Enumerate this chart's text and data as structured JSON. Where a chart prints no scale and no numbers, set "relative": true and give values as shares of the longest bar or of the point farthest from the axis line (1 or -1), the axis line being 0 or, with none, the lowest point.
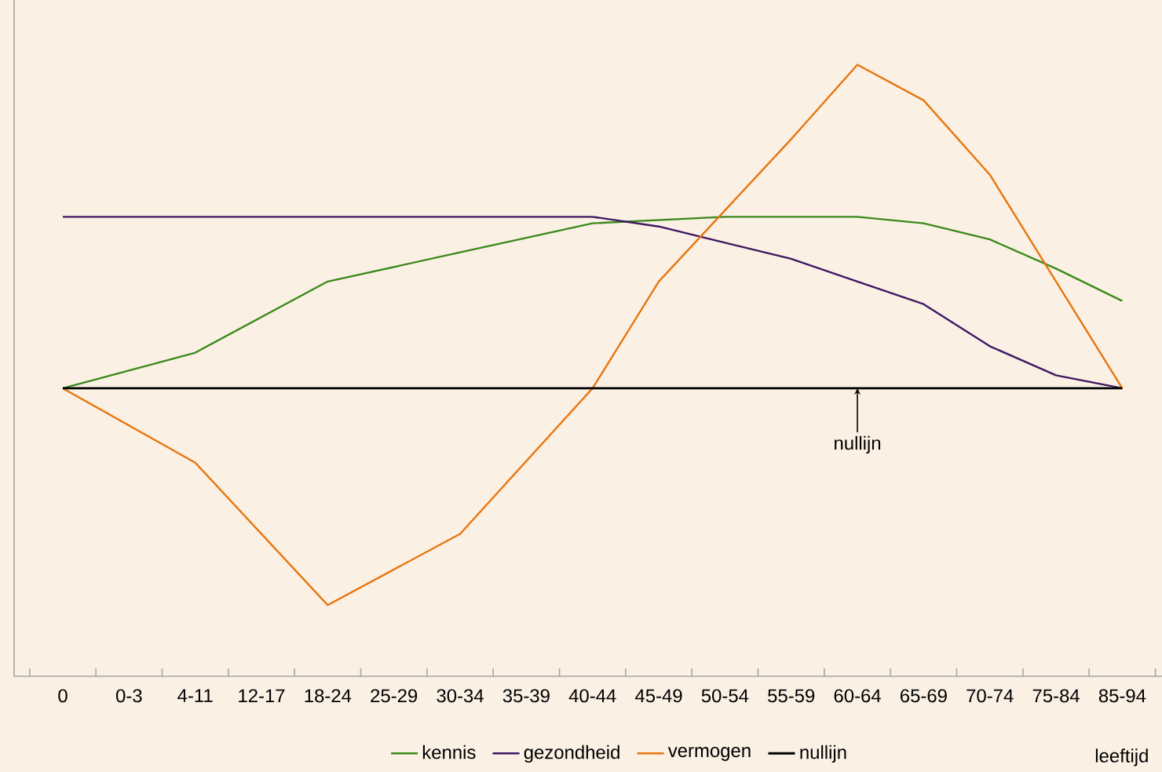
{
  "chart_data": {
    "type": "line",
    "relative": true,
    "xlabel": "leeftijd",
    "categories": [
      "0",
      "0-3",
      "4-11",
      "12-17",
      "18-24",
      "25-29",
      "30-34",
      "35-39",
      "40-44",
      "45-49",
      "50-54",
      "55-59",
      "60-64",
      "65-69",
      "70-74",
      "75-84",
      "85-94"
    ],
    "series": [
      {
        "name": "kennis",
        "color": "#3a8a1a",
        "values": [
          0,
          null,
          0.11,
          null,
          0.33,
          null,
          0.42,
          null,
          0.51,
          0.52,
          0.53,
          0.53,
          0.53,
          0.51,
          0.46,
          0.37,
          0.27
        ]
      },
      {
        "name": "gezondheid",
        "color": "#3f1760",
        "values": [
          0.53,
          null,
          0.53,
          null,
          0.53,
          null,
          0.53,
          null,
          0.53,
          0.5,
          0.45,
          0.4,
          0.33,
          0.26,
          0.13,
          0.04,
          0
        ]
      },
      {
        "name": "vermogen",
        "color": "#e8750c",
        "values": [
          0,
          null,
          -0.23,
          null,
          -0.67,
          null,
          -0.45,
          null,
          0,
          0.33,
          0.55,
          0.77,
          1,
          0.89,
          0.66,
          0.33,
          0
        ]
      },
      {
        "name": "nullijn",
        "color": "#000000",
        "values": [
          0,
          0,
          0,
          0,
          0,
          0,
          0,
          0,
          0,
          0,
          0,
          0,
          0,
          0,
          0,
          0,
          0
        ]
      }
    ],
    "annotations": [
      {
        "text": "nullijn",
        "x": "60-64",
        "y": 0
      }
    ],
    "legend": "bottom",
    "marker": "none",
    "line_style": "solid"
  }
}
